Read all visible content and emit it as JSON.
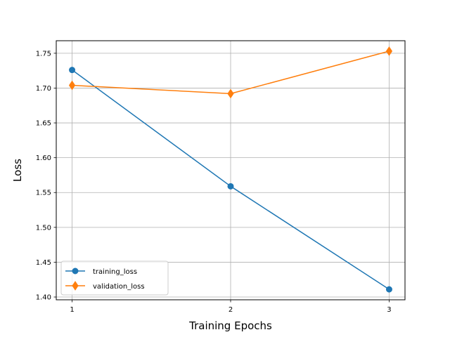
{
  "chart_data": {
    "type": "line",
    "title": "",
    "xlabel": "Training Epochs",
    "ylabel": "Loss",
    "x": [
      1,
      2,
      3
    ],
    "xlim": [
      0.9,
      3.1
    ],
    "ylim": [
      1.396,
      1.768
    ],
    "xticks": [
      "1",
      "2",
      "3"
    ],
    "yticks": [
      "1.40",
      "1.45",
      "1.50",
      "1.55",
      "1.60",
      "1.65",
      "1.70",
      "1.75"
    ],
    "grid": true,
    "legend_position": "lower-left",
    "series": [
      {
        "name": "training_loss",
        "values": [
          1.726,
          1.559,
          1.411
        ],
        "color": "#1f77b4",
        "marker": "circle"
      },
      {
        "name": "validation_loss",
        "values": [
          1.704,
          1.692,
          1.753
        ],
        "color": "#ff7f0e",
        "marker": "diamond"
      }
    ]
  }
}
